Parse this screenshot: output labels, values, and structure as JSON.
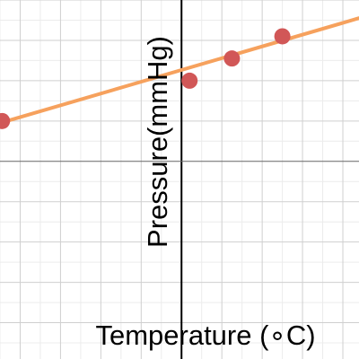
{
  "chart_data": {
    "type": "scatter",
    "xlabel": "Temperature (∘C)",
    "ylabel": "Pressure(mmHg)",
    "xlim": [
      -4.5,
      4.4
    ],
    "ylim": [
      -4.9,
      4.0
    ],
    "grid": true,
    "series": [
      {
        "mode": "markers",
        "x": [
          -4.45,
          0.2,
          1.25,
          2.5
        ],
        "y": [
          1.0,
          2.0,
          2.55,
          3.1
        ],
        "color": "#d15757"
      },
      {
        "mode": "line",
        "x": [
          -4.5,
          4.4
        ],
        "y": [
          0.95,
          3.55
        ],
        "color": "#f6a15d"
      }
    ]
  }
}
